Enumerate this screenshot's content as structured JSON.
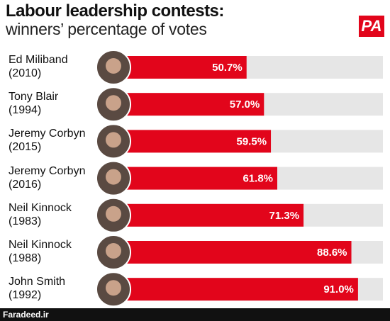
{
  "chart_data": {
    "type": "bar",
    "orientation": "horizontal",
    "title": "Labour leadership contests:",
    "subtitle": "winners’ percentage of votes",
    "logo": "PA",
    "watermark": "Faradeed.ir",
    "categories": [
      "Ed Miliband\n(2010)",
      "Tony Blair\n(1994)",
      "Jeremy Corbyn\n(2015)",
      "Jeremy Corbyn\n(2016)",
      "Neil Kinnock\n(1983)",
      "Neil Kinnock\n(1988)",
      "John Smith\n(1992)"
    ],
    "values": [
      50.7,
      57.0,
      59.5,
      61.8,
      71.3,
      88.6,
      91.0
    ],
    "value_labels": [
      "50.7%",
      "57.0%",
      "59.5%",
      "61.8%",
      "71.3%",
      "88.6%",
      "91.0%"
    ],
    "color": "#e2051b",
    "xlim": [
      0,
      100
    ]
  }
}
